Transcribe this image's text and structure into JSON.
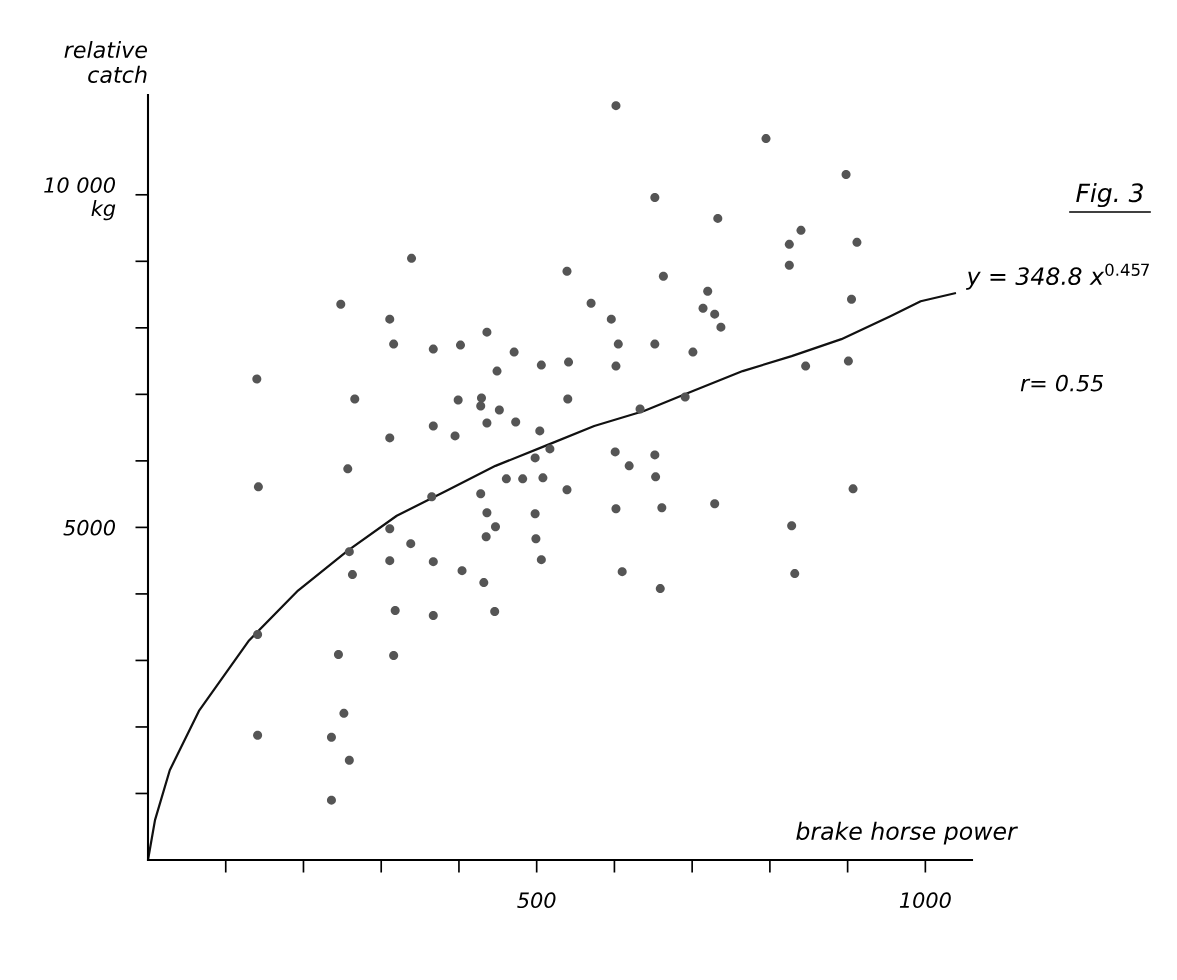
{
  "chart_data": {
    "type": "scatter",
    "title": "Fig. 3",
    "xlabel": "brake horse power",
    "ylabel": "relative\ncatch",
    "xlim": [
      0,
      1060
    ],
    "ylim": [
      0,
      11500
    ],
    "xticks": [
      {
        "value": 100,
        "label": null
      },
      {
        "value": 200,
        "label": null
      },
      {
        "value": 300,
        "label": null
      },
      {
        "value": 400,
        "label": null
      },
      500,
      {
        "value": 600,
        "label": null
      },
      {
        "value": 700,
        "label": null
      },
      {
        "value": 800,
        "label": null
      },
      {
        "value": 900,
        "label": null
      },
      1000
    ],
    "yticks": [
      {
        "value": 1000,
        "label": null
      },
      {
        "value": 2000,
        "label": null
      },
      {
        "value": 3000,
        "label": null
      },
      {
        "value": 4000,
        "label": null
      },
      5000,
      {
        "value": 6000,
        "label": null
      },
      {
        "value": 7000,
        "label": null
      },
      {
        "value": 8000,
        "label": null
      },
      {
        "value": 9000,
        "label": null
      },
      {
        "value": 10000,
        "label": "10 000\nkg"
      }
    ],
    "grid": false,
    "legend": false,
    "marker": "circle",
    "annotations": [
      "r= 0.55"
    ],
    "series": [
      {
        "color": "#555555",
        "x": [
          140,
          142,
          141,
          141,
          248,
          245,
          252,
          259,
          236,
          236,
          257,
          259,
          263,
          266,
          311,
          316,
          311,
          311,
          311,
          318,
          316,
          339,
          338,
          367,
          367,
          365,
          367,
          367,
          402,
          399,
          395,
          404,
          429,
          428,
          428,
          432,
          436,
          436,
          436,
          435,
          446,
          449,
          452,
          447,
          461,
          471,
          473,
          482,
          498,
          498,
          499,
          506,
          504,
          508,
          506,
          517,
          539,
          541,
          540,
          539,
          570,
          596,
          605,
          602,
          601,
          602,
          610,
          602,
          619,
          633,
          652,
          663,
          652,
          652,
          653,
          659,
          661,
          691,
          701,
          714,
          720,
          729,
          733,
          737,
          729,
          795,
          825,
          825,
          840,
          846,
          828,
          832,
          898,
          905,
          901,
          907,
          912
        ],
        "values": [
          7230,
          5610,
          3390,
          1875,
          8355,
          3090,
          2205,
          1500,
          1845,
          900,
          5880,
          4635,
          4290,
          6930,
          8130,
          7755,
          6345,
          4980,
          4500,
          3750,
          3075,
          9045,
          4755,
          7680,
          6525,
          5460,
          4485,
          3675,
          7740,
          6915,
          6375,
          4350,
          6945,
          6825,
          5505,
          4170,
          7935,
          6570,
          5220,
          4860,
          3735,
          7350,
          6765,
          5010,
          5730,
          7635,
          6585,
          5730,
          6045,
          5205,
          4830,
          7440,
          6450,
          5745,
          4515,
          6180,
          8850,
          7485,
          6930,
          5565,
          8370,
          8130,
          7755,
          7425,
          6135,
          5280,
          4335,
          11340,
          5925,
          6780,
          9960,
          8775,
          7755,
          6090,
          5760,
          4080,
          5295,
          6960,
          7635,
          8295,
          8550,
          8205,
          9645,
          8010,
          5355,
          10845,
          9255,
          8940,
          9465,
          7425,
          5025,
          4305,
          10305,
          8430,
          7500,
          5580,
          9285
        ]
      },
      {
        "type": "line",
        "name": "y = 348.8 x$^{0.457}$",
        "color": "#111111",
        "marker": "none",
        "line_style": "solid",
        "x": [
          0,
          9,
          28,
          66,
          130,
          193,
          257,
          320,
          384,
          447,
          511,
          574,
          638,
          701,
          765,
          828,
          892,
          955,
          994,
          1038
        ],
        "values": [
          0,
          600,
          1350,
          2250,
          3300,
          4050,
          4650,
          5175,
          5550,
          5925,
          6225,
          6525,
          6750,
          7050,
          7350,
          7575,
          7830,
          8175,
          8400,
          8520
        ]
      }
    ]
  }
}
